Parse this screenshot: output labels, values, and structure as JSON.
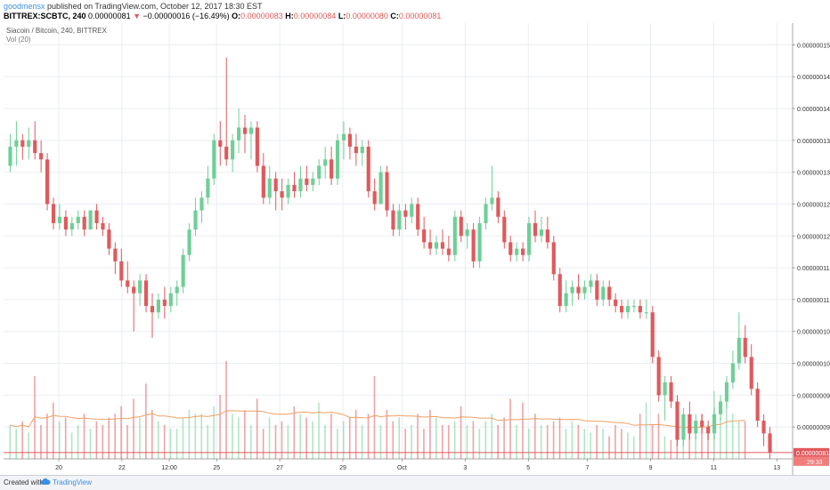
{
  "header": {
    "user": "goodmensx",
    "published_text": "published on TradingView.com, October 12, 2017 18:30 EST",
    "symbol_line": "BITTREX:SCBTC, 240",
    "last": "0.00000081",
    "arrow": "▼",
    "change": "−0.00000016 (−16.49%)",
    "o_label": "O:",
    "o_val": "0.00000083",
    "h_label": "H:",
    "h_val": "0.00000084",
    "l_label": "L:",
    "l_val": "0.00000080",
    "c_label": "C:",
    "c_val": "0.00000081"
  },
  "legend": {
    "series_title": "Siacoin / Bitcoin, 240, BITTREX",
    "vol_label": "Vol (20)"
  },
  "footer": {
    "created_with": "Created with",
    "brand": "TradingView"
  },
  "colors": {
    "up": "#6fcf97",
    "down": "#e0595c",
    "vol_ma": "#f0a063",
    "price_line": "#e0595c",
    "price_tag_bg": "#e0595c",
    "time_tag_bg": "#f27c7c",
    "grid": "#e9edf2"
  },
  "chart_data": {
    "type": "candlestick",
    "symbol": "BITTREX:SCBTC",
    "interval": "240",
    "y_ticks": [
      145,
      140,
      135,
      130,
      125,
      120,
      115,
      110,
      105,
      100,
      95,
      90,
      85
    ],
    "y_unit_scale": 1e-09,
    "ylim": [
      80,
      147
    ],
    "x_ticks": [
      "20",
      "22",
      "12:00",
      "25",
      "27",
      "29",
      "Oct",
      "3",
      "5",
      "7",
      "9",
      "11",
      "13"
    ],
    "last_price_label": "0.00000081",
    "countdown_label": "29:33",
    "candles": [
      {
        "o": 126,
        "h": 131,
        "l": 125,
        "c": 129
      },
      {
        "o": 129,
        "h": 133,
        "l": 126,
        "c": 130
      },
      {
        "o": 130,
        "h": 131,
        "l": 127,
        "c": 129
      },
      {
        "o": 129,
        "h": 132,
        "l": 127,
        "c": 130
      },
      {
        "o": 130,
        "h": 133,
        "l": 127,
        "c": 128
      },
      {
        "o": 128,
        "h": 130,
        "l": 125,
        "c": 127
      },
      {
        "o": 127,
        "h": 128,
        "l": 119,
        "c": 120
      },
      {
        "o": 120,
        "h": 121,
        "l": 116,
        "c": 117
      },
      {
        "o": 117,
        "h": 120,
        "l": 116,
        "c": 118
      },
      {
        "o": 118,
        "h": 119,
        "l": 115,
        "c": 116
      },
      {
        "o": 116,
        "h": 118,
        "l": 115,
        "c": 117
      },
      {
        "o": 117,
        "h": 119,
        "l": 116,
        "c": 118
      },
      {
        "o": 118,
        "h": 119,
        "l": 115,
        "c": 116
      },
      {
        "o": 116,
        "h": 119,
        "l": 116,
        "c": 119
      },
      {
        "o": 119,
        "h": 120,
        "l": 116,
        "c": 117
      },
      {
        "o": 117,
        "h": 118,
        "l": 115,
        "c": 116
      },
      {
        "o": 116,
        "h": 117,
        "l": 112,
        "c": 113
      },
      {
        "o": 113,
        "h": 114,
        "l": 109,
        "c": 111
      },
      {
        "o": 111,
        "h": 113,
        "l": 107,
        "c": 108
      },
      {
        "o": 108,
        "h": 111,
        "l": 106,
        "c": 107
      },
      {
        "o": 107,
        "h": 108,
        "l": 100,
        "c": 106
      },
      {
        "o": 106,
        "h": 109,
        "l": 104,
        "c": 108
      },
      {
        "o": 108,
        "h": 109,
        "l": 103,
        "c": 104
      },
      {
        "o": 104,
        "h": 106,
        "l": 99,
        "c": 103
      },
      {
        "o": 103,
        "h": 106,
        "l": 102,
        "c": 105
      },
      {
        "o": 105,
        "h": 107,
        "l": 102,
        "c": 104
      },
      {
        "o": 104,
        "h": 107,
        "l": 103,
        "c": 106
      },
      {
        "o": 106,
        "h": 108,
        "l": 104,
        "c": 107
      },
      {
        "o": 107,
        "h": 113,
        "l": 106,
        "c": 112
      },
      {
        "o": 112,
        "h": 117,
        "l": 111,
        "c": 116
      },
      {
        "o": 116,
        "h": 121,
        "l": 115,
        "c": 119
      },
      {
        "o": 119,
        "h": 122,
        "l": 117,
        "c": 121
      },
      {
        "o": 121,
        "h": 126,
        "l": 120,
        "c": 124
      },
      {
        "o": 124,
        "h": 131,
        "l": 123,
        "c": 130
      },
      {
        "o": 130,
        "h": 133,
        "l": 126,
        "c": 129
      },
      {
        "o": 129,
        "h": 143,
        "l": 126,
        "c": 127
      },
      {
        "o": 127,
        "h": 131,
        "l": 125,
        "c": 130
      },
      {
        "o": 130,
        "h": 135,
        "l": 128,
        "c": 132
      },
      {
        "o": 132,
        "h": 134,
        "l": 128,
        "c": 131
      },
      {
        "o": 131,
        "h": 133,
        "l": 127,
        "c": 132
      },
      {
        "o": 132,
        "h": 133,
        "l": 125,
        "c": 126
      },
      {
        "o": 126,
        "h": 128,
        "l": 120,
        "c": 121
      },
      {
        "o": 121,
        "h": 126,
        "l": 120,
        "c": 124
      },
      {
        "o": 124,
        "h": 125,
        "l": 119,
        "c": 122
      },
      {
        "o": 122,
        "h": 124,
        "l": 119,
        "c": 121
      },
      {
        "o": 121,
        "h": 124,
        "l": 120,
        "c": 123
      },
      {
        "o": 123,
        "h": 125,
        "l": 121,
        "c": 122
      },
      {
        "o": 122,
        "h": 126,
        "l": 121,
        "c": 124
      },
      {
        "o": 124,
        "h": 126,
        "l": 122,
        "c": 123
      },
      {
        "o": 123,
        "h": 125,
        "l": 122,
        "c": 124
      },
      {
        "o": 124,
        "h": 127,
        "l": 123,
        "c": 126
      },
      {
        "o": 126,
        "h": 129,
        "l": 124,
        "c": 127
      },
      {
        "o": 127,
        "h": 129,
        "l": 123,
        "c": 124
      },
      {
        "o": 124,
        "h": 131,
        "l": 123,
        "c": 130
      },
      {
        "o": 130,
        "h": 133,
        "l": 127,
        "c": 131
      },
      {
        "o": 131,
        "h": 132,
        "l": 127,
        "c": 129
      },
      {
        "o": 129,
        "h": 131,
        "l": 126,
        "c": 128
      },
      {
        "o": 128,
        "h": 130,
        "l": 126,
        "c": 129
      },
      {
        "o": 129,
        "h": 130,
        "l": 121,
        "c": 122
      },
      {
        "o": 122,
        "h": 124,
        "l": 119,
        "c": 120
      },
      {
        "o": 120,
        "h": 126,
        "l": 120,
        "c": 125
      },
      {
        "o": 125,
        "h": 126,
        "l": 118,
        "c": 119
      },
      {
        "o": 119,
        "h": 120,
        "l": 115,
        "c": 116
      },
      {
        "o": 116,
        "h": 120,
        "l": 115,
        "c": 119
      },
      {
        "o": 119,
        "h": 120,
        "l": 116,
        "c": 118
      },
      {
        "o": 118,
        "h": 121,
        "l": 117,
        "c": 120
      },
      {
        "o": 120,
        "h": 121,
        "l": 115,
        "c": 116
      },
      {
        "o": 116,
        "h": 118,
        "l": 113,
        "c": 114
      },
      {
        "o": 114,
        "h": 116,
        "l": 112,
        "c": 113
      },
      {
        "o": 113,
        "h": 115,
        "l": 112,
        "c": 114
      },
      {
        "o": 114,
        "h": 116,
        "l": 112,
        "c": 113
      },
      {
        "o": 113,
        "h": 115,
        "l": 111,
        "c": 112
      },
      {
        "o": 112,
        "h": 119,
        "l": 111,
        "c": 118
      },
      {
        "o": 118,
        "h": 119,
        "l": 114,
        "c": 115
      },
      {
        "o": 115,
        "h": 117,
        "l": 113,
        "c": 116
      },
      {
        "o": 116,
        "h": 117,
        "l": 110,
        "c": 111
      },
      {
        "o": 111,
        "h": 118,
        "l": 110,
        "c": 117
      },
      {
        "o": 117,
        "h": 121,
        "l": 116,
        "c": 120
      },
      {
        "o": 120,
        "h": 126,
        "l": 119,
        "c": 121
      },
      {
        "o": 121,
        "h": 122,
        "l": 117,
        "c": 118
      },
      {
        "o": 118,
        "h": 119,
        "l": 113,
        "c": 114
      },
      {
        "o": 114,
        "h": 115,
        "l": 111,
        "c": 112
      },
      {
        "o": 112,
        "h": 114,
        "l": 111,
        "c": 113
      },
      {
        "o": 113,
        "h": 114,
        "l": 111,
        "c": 112
      },
      {
        "o": 112,
        "h": 118,
        "l": 111,
        "c": 117
      },
      {
        "o": 117,
        "h": 119,
        "l": 114,
        "c": 115
      },
      {
        "o": 115,
        "h": 118,
        "l": 114,
        "c": 116
      },
      {
        "o": 116,
        "h": 118,
        "l": 113,
        "c": 114
      },
      {
        "o": 114,
        "h": 115,
        "l": 108,
        "c": 109
      },
      {
        "o": 109,
        "h": 110,
        "l": 103,
        "c": 104
      },
      {
        "o": 104,
        "h": 108,
        "l": 103,
        "c": 106
      },
      {
        "o": 106,
        "h": 108,
        "l": 104,
        "c": 107
      },
      {
        "o": 107,
        "h": 109,
        "l": 105,
        "c": 106
      },
      {
        "o": 106,
        "h": 108,
        "l": 105,
        "c": 107
      },
      {
        "o": 107,
        "h": 109,
        "l": 106,
        "c": 108
      },
      {
        "o": 108,
        "h": 109,
        "l": 104,
        "c": 105
      },
      {
        "o": 105,
        "h": 108,
        "l": 104,
        "c": 107
      },
      {
        "o": 107,
        "h": 108,
        "l": 104,
        "c": 105
      },
      {
        "o": 105,
        "h": 106,
        "l": 103,
        "c": 104
      },
      {
        "o": 104,
        "h": 105,
        "l": 102,
        "c": 103
      },
      {
        "o": 103,
        "h": 105,
        "l": 102,
        "c": 104
      },
      {
        "o": 104,
        "h": 105,
        "l": 103,
        "c": 104
      },
      {
        "o": 104,
        "h": 105,
        "l": 102,
        "c": 103
      },
      {
        "o": 103,
        "h": 105,
        "l": 102,
        "c": 103
      },
      {
        "o": 103,
        "h": 104,
        "l": 95,
        "c": 96
      },
      {
        "o": 96,
        "h": 97,
        "l": 89,
        "c": 90
      },
      {
        "o": 90,
        "h": 93,
        "l": 86,
        "c": 92
      },
      {
        "o": 92,
        "h": 93,
        "l": 88,
        "c": 89
      },
      {
        "o": 89,
        "h": 90,
        "l": 82,
        "c": 83
      },
      {
        "o": 83,
        "h": 88,
        "l": 82,
        "c": 87
      },
      {
        "o": 87,
        "h": 89,
        "l": 83,
        "c": 84
      },
      {
        "o": 84,
        "h": 87,
        "l": 83,
        "c": 86
      },
      {
        "o": 86,
        "h": 87,
        "l": 84,
        "c": 85
      },
      {
        "o": 85,
        "h": 86,
        "l": 83,
        "c": 84
      },
      {
        "o": 84,
        "h": 88,
        "l": 83,
        "c": 87
      },
      {
        "o": 87,
        "h": 90,
        "l": 86,
        "c": 89
      },
      {
        "o": 89,
        "h": 93,
        "l": 88,
        "c": 92
      },
      {
        "o": 92,
        "h": 97,
        "l": 91,
        "c": 95
      },
      {
        "o": 95,
        "h": 103,
        "l": 94,
        "c": 99
      },
      {
        "o": 99,
        "h": 101,
        "l": 95,
        "c": 96
      },
      {
        "o": 96,
        "h": 98,
        "l": 90,
        "c": 91
      },
      {
        "o": 91,
        "h": 92,
        "l": 85,
        "c": 86
      },
      {
        "o": 86,
        "h": 87,
        "l": 82,
        "c": 84
      },
      {
        "o": 84,
        "h": 85,
        "l": 80,
        "c": 81
      }
    ],
    "volume": [
      9,
      8,
      10,
      7,
      22,
      9,
      12,
      15,
      10,
      11,
      7,
      9,
      12,
      8,
      10,
      9,
      11,
      12,
      14,
      9,
      16,
      11,
      20,
      13,
      10,
      9,
      8,
      8,
      11,
      13,
      12,
      12,
      9,
      14,
      17,
      26,
      12,
      11,
      13,
      9,
      16,
      8,
      11,
      9,
      10,
      9,
      14,
      12,
      11,
      10,
      15,
      9,
      12,
      8,
      10,
      11,
      13,
      9,
      12,
      22,
      9,
      13,
      10,
      11,
      8,
      9,
      12,
      8,
      13,
      11,
      9,
      9,
      10,
      14,
      9,
      10,
      8,
      10,
      12,
      9,
      11,
      16,
      9,
      15,
      8,
      12,
      9,
      9,
      10,
      11,
      8,
      10,
      9,
      8,
      7,
      9,
      8,
      6,
      9,
      8,
      7,
      6,
      12,
      15,
      9,
      12,
      6,
      5,
      6,
      8,
      9,
      7,
      12,
      9,
      18,
      11,
      21,
      12,
      10,
      10
    ]
  }
}
